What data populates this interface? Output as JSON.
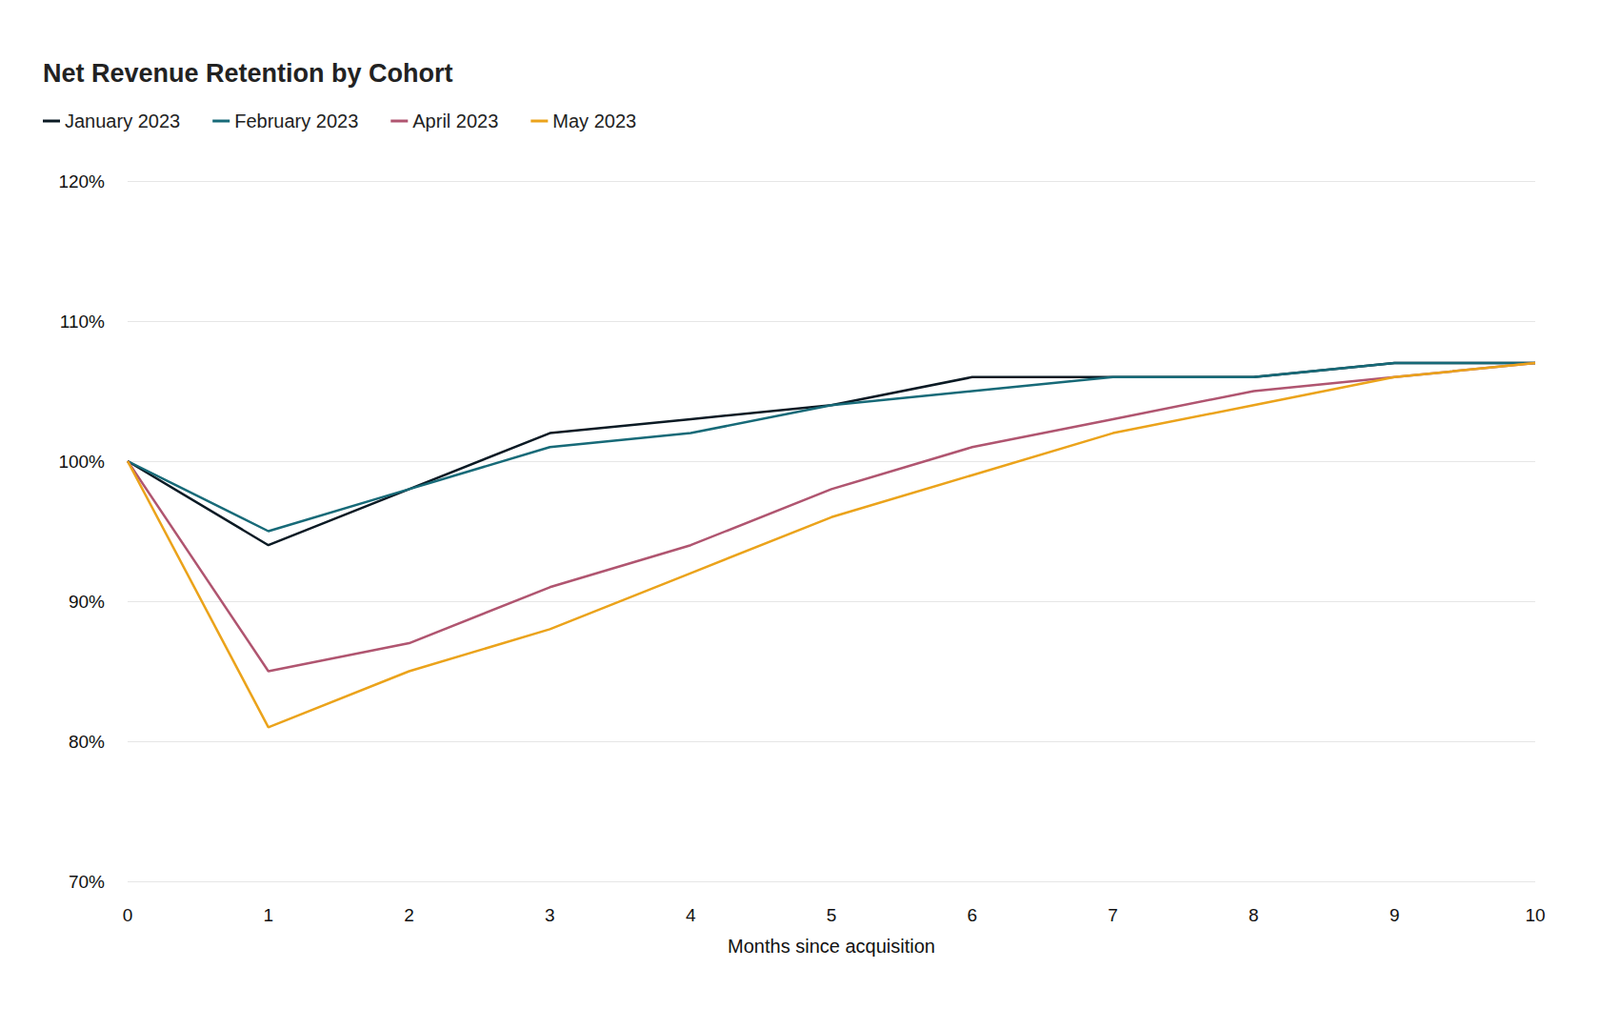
{
  "chart_data": {
    "type": "line",
    "title": "Net Revenue Retention by Cohort",
    "x_label": "Months since acquisition",
    "x": [
      0,
      1,
      2,
      3,
      4,
      5,
      6,
      7,
      8,
      9,
      10
    ],
    "xlim": [
      0,
      10
    ],
    "xticks": [
      0,
      1,
      2,
      3,
      4,
      5,
      6,
      7,
      8,
      9,
      10
    ],
    "ylim": [
      70,
      120
    ],
    "yticks": [
      {
        "value": 70,
        "label": "70%"
      },
      {
        "value": 80,
        "label": "80%"
      },
      {
        "value": 90,
        "label": "90%"
      },
      {
        "value": 100,
        "label": "100%"
      },
      {
        "value": 110,
        "label": "110%"
      },
      {
        "value": 120,
        "label": "120%"
      }
    ],
    "grid": true,
    "legend": "top-left",
    "series": [
      {
        "name": "January 2023",
        "color": "#0b1a24",
        "values": [
          100,
          94,
          98,
          102,
          103,
          104,
          106,
          106,
          106,
          107,
          107
        ]
      },
      {
        "name": "February 2023",
        "color": "#176a78",
        "values": [
          100,
          95,
          98,
          101,
          102,
          104,
          105,
          106,
          106,
          107,
          107
        ]
      },
      {
        "name": "April 2023",
        "color": "#b05570",
        "values": [
          100,
          85,
          87,
          91,
          94,
          98,
          101,
          103,
          105,
          106,
          107
        ]
      },
      {
        "name": "May 2023",
        "color": "#eba31b",
        "values": [
          100,
          81,
          85,
          88,
          92,
          96,
          99,
          102,
          104,
          106,
          107
        ]
      }
    ]
  }
}
